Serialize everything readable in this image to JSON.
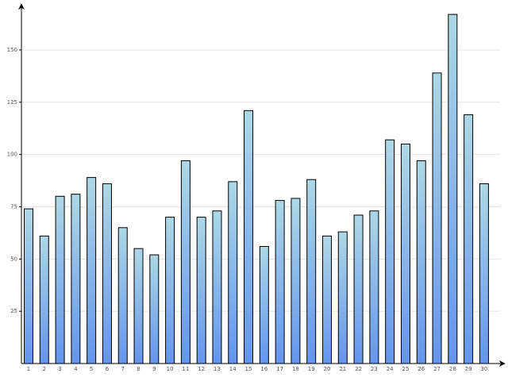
{
  "chart_data": {
    "type": "bar",
    "categories": [
      "1",
      "2",
      "3",
      "4",
      "5",
      "6",
      "7",
      "8",
      "9",
      "10",
      "11",
      "12",
      "13",
      "14",
      "15",
      "16",
      "17",
      "18",
      "19",
      "20",
      "21",
      "22",
      "23",
      "24",
      "25",
      "26",
      "27",
      "28",
      "29",
      "30"
    ],
    "values": [
      74,
      61,
      80,
      81,
      89,
      86,
      65,
      55,
      52,
      70,
      97,
      70,
      73,
      87,
      121,
      56,
      78,
      79,
      88,
      61,
      63,
      71,
      73,
      107,
      105,
      97,
      139,
      167,
      119,
      86
    ],
    "gradient": [
      "#add8e6",
      "#6495ed"
    ],
    "ylim": [
      0,
      172
    ],
    "yticks": [
      25,
      50,
      75,
      100,
      125,
      150
    ],
    "grid": true
  }
}
